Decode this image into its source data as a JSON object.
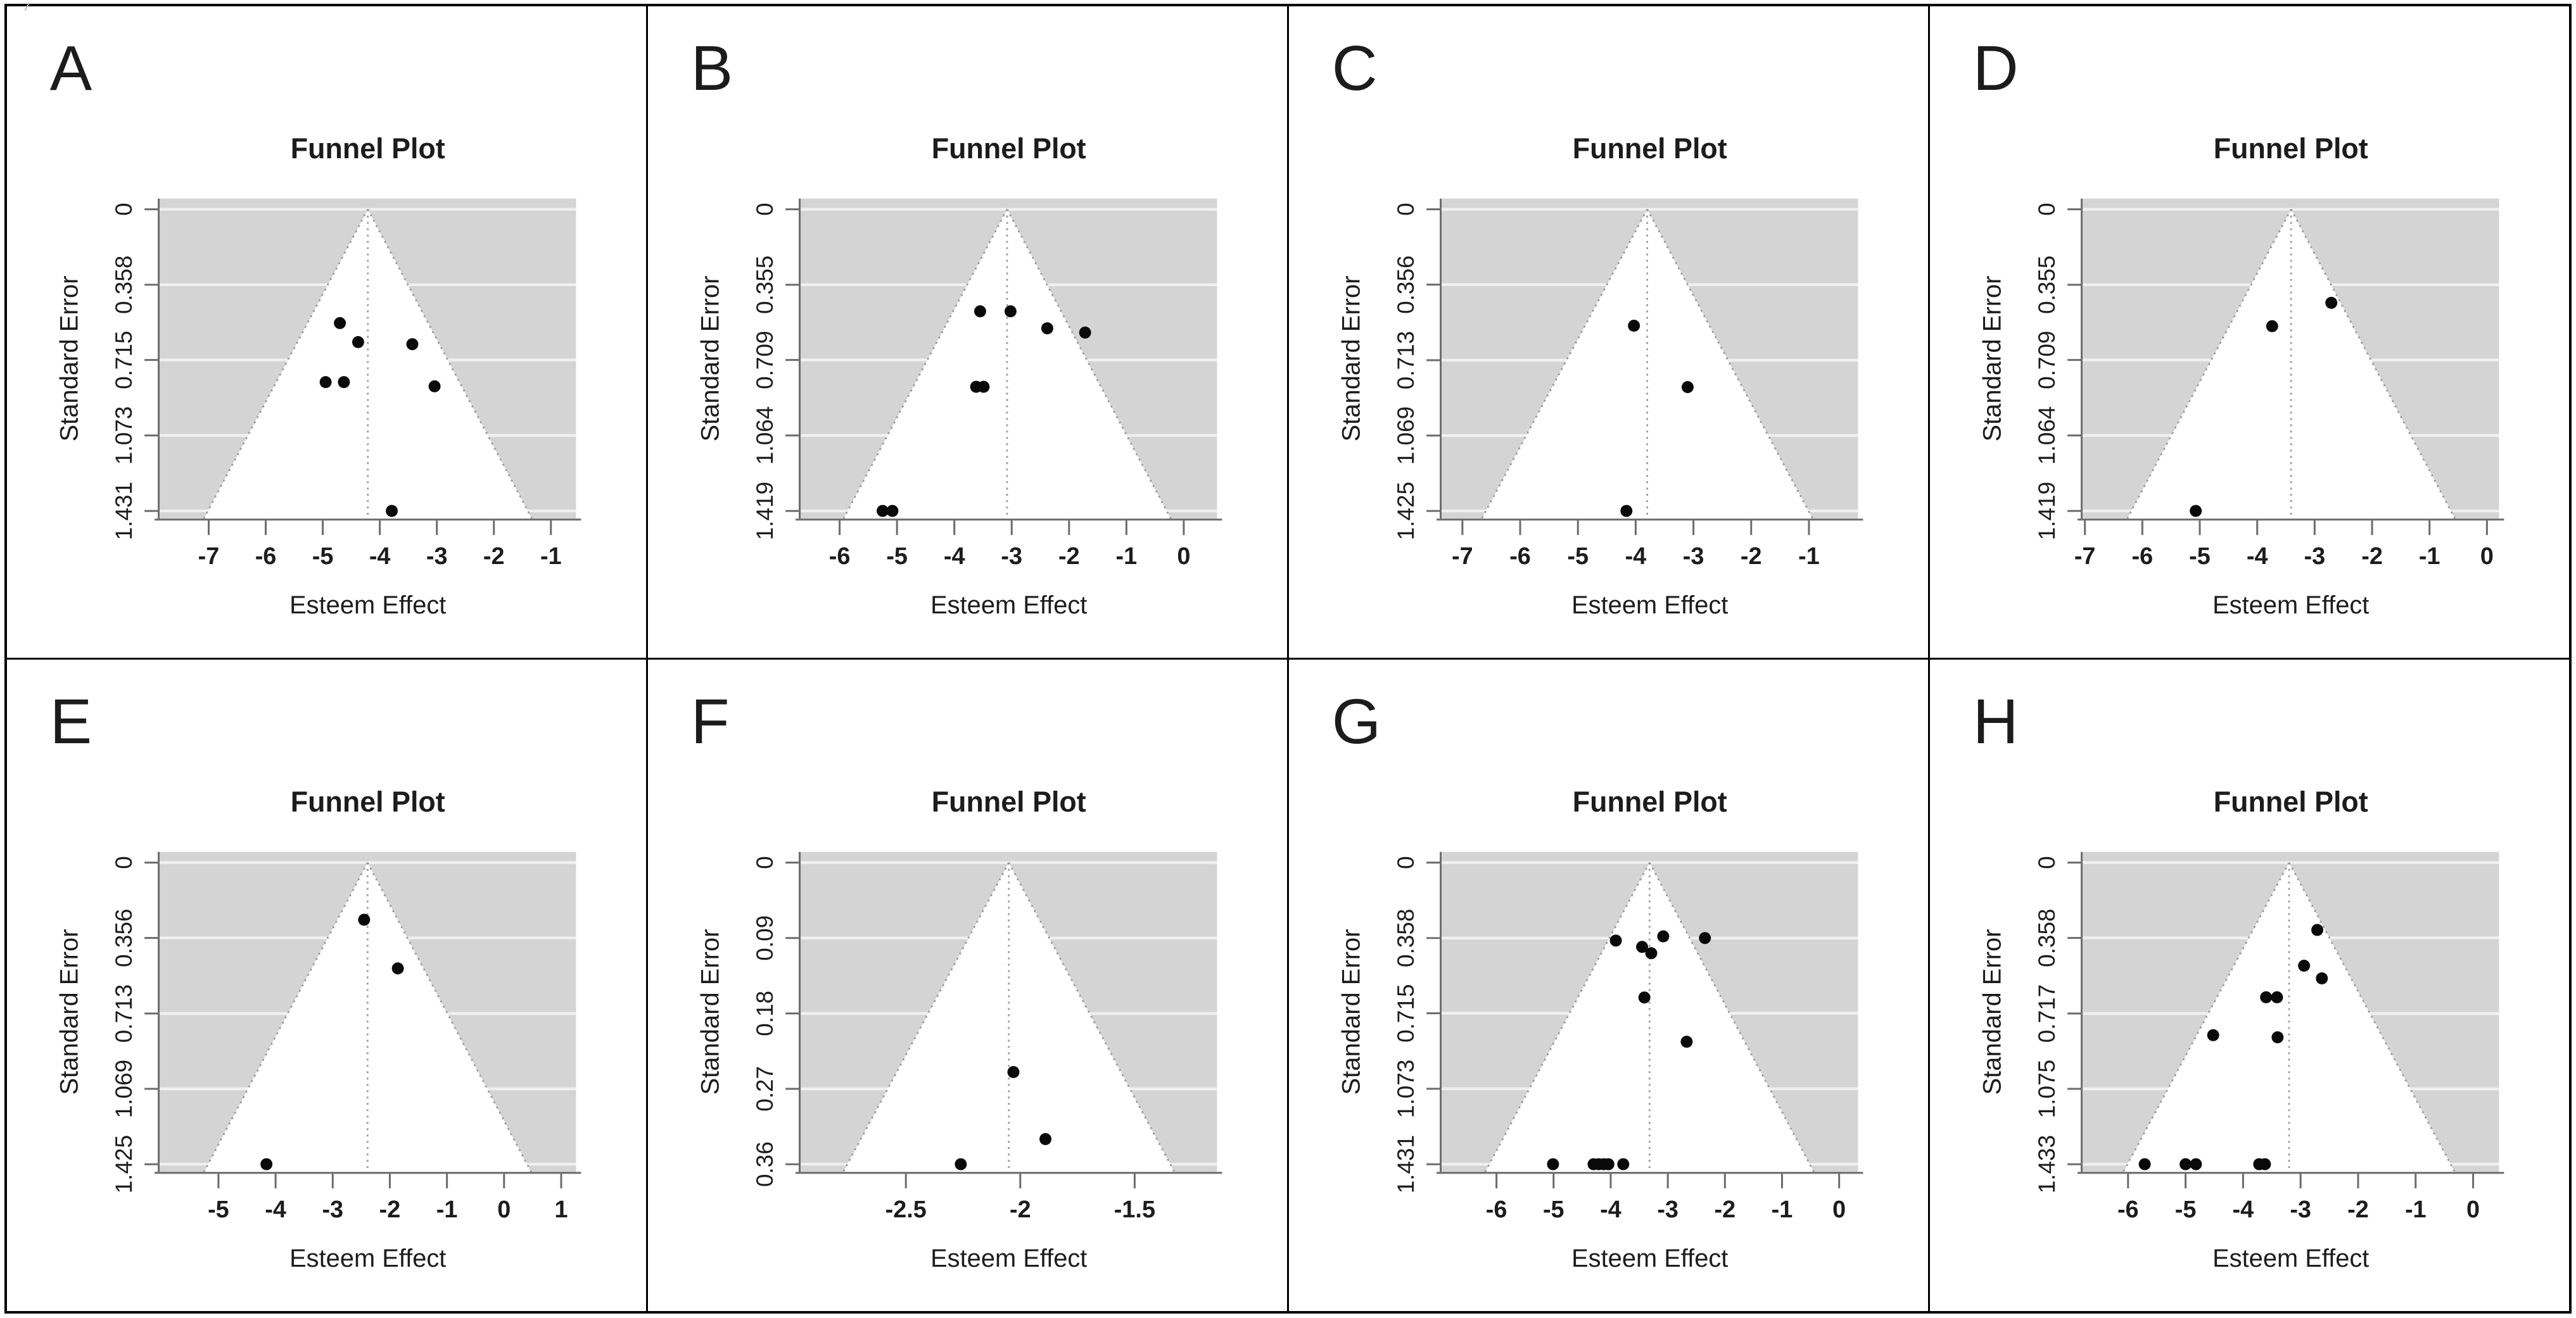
{
  "figure": {
    "description": "Eight funnel plots arranged in a 2x4 grid, panels A through H",
    "common": {
      "title": "Funnel Plot",
      "xlabel": "Esteem Effect",
      "ylabel": "Standard Error"
    },
    "colors": {
      "plot_background": "#d4d4d4",
      "gridline": "#f0f0f0",
      "funnel_fill": "#ffffff",
      "funnel_edge": "#9b9b9b",
      "center_line": "#9b9b9b",
      "axis": "#6b6b6b",
      "text": "#1c1c1c",
      "point": "#0a0a0a",
      "panel_border": "#000000"
    }
  },
  "chart_data": [
    {
      "type": "scatter",
      "panel_label": "A",
      "title": "Funnel Plot",
      "xlabel": "Esteem Effect",
      "ylabel": "Standard Error",
      "xtick_labels": [
        "-7",
        "-6",
        "-5",
        "-4",
        "-3",
        "-2",
        "-1"
      ],
      "xtick_values": [
        -7,
        -6,
        -5,
        -4,
        -3,
        -2,
        -1
      ],
      "ytick_labels": [
        "0",
        "0.358",
        "0.715",
        "1.073",
        "1.431"
      ],
      "ytick_values": [
        0,
        0.358,
        0.715,
        1.073,
        1.431
      ],
      "xlim": [
        -7.86,
        -0.56
      ],
      "se_max": 1.431,
      "center_line_x": -4.21,
      "points": [
        [
          -4.7,
          0.54
        ],
        [
          -4.38,
          0.63
        ],
        [
          -3.43,
          0.64
        ],
        [
          -4.95,
          0.82
        ],
        [
          -4.63,
          0.82
        ],
        [
          -3.04,
          0.84
        ],
        [
          -3.79,
          1.431
        ]
      ]
    },
    {
      "type": "scatter",
      "panel_label": "B",
      "title": "Funnel Plot",
      "xlabel": "Esteem Effect",
      "ylabel": "Standard Error",
      "xtick_labels": [
        "-6",
        "-5",
        "-4",
        "-3",
        "-2",
        "-1",
        "0"
      ],
      "xtick_values": [
        -6,
        -5,
        -4,
        -3,
        -2,
        -1,
        0
      ],
      "ytick_labels": [
        "0",
        "0.355",
        "0.709",
        "1.064",
        "1.419"
      ],
      "ytick_values": [
        0,
        0.355,
        0.709,
        1.064,
        1.419
      ],
      "xlim": [
        -6.68,
        0.58
      ],
      "se_max": 1.419,
      "center_line_x": -3.08,
      "points": [
        [
          -3.55,
          0.48
        ],
        [
          -3.02,
          0.48
        ],
        [
          -2.38,
          0.56
        ],
        [
          -1.72,
          0.58
        ],
        [
          -3.62,
          0.835
        ],
        [
          -3.49,
          0.835
        ],
        [
          -5.25,
          1.419
        ],
        [
          -5.08,
          1.419
        ]
      ]
    },
    {
      "type": "scatter",
      "panel_label": "C",
      "title": "Funnel Plot",
      "xlabel": "Esteem Effect",
      "ylabel": "Standard Error",
      "xtick_labels": [
        "-7",
        "-6",
        "-5",
        "-4",
        "-3",
        "-2",
        "-1"
      ],
      "xtick_values": [
        -7,
        -6,
        -5,
        -4,
        -3,
        -2,
        -1
      ],
      "ytick_labels": [
        "0",
        "0.356",
        "0.713",
        "1.069",
        "1.425"
      ],
      "ytick_values": [
        0,
        0.356,
        0.713,
        1.069,
        1.425
      ],
      "xlim": [
        -7.36,
        -0.15
      ],
      "se_max": 1.425,
      "center_line_x": -3.8,
      "points": [
        [
          -4.03,
          0.55
        ],
        [
          -3.1,
          0.84
        ],
        [
          -4.16,
          1.425
        ]
      ]
    },
    {
      "type": "scatter",
      "panel_label": "D",
      "title": "Funnel Plot",
      "xlabel": "Esteem Effect",
      "ylabel": "Standard Error",
      "xtick_labels": [
        "-7",
        "-6",
        "-5",
        "-4",
        "-3",
        "-2",
        "-1",
        "0"
      ],
      "xtick_values": [
        -7,
        -6,
        -5,
        -4,
        -3,
        -2,
        -1,
        0
      ],
      "ytick_labels": [
        "0",
        "0.355",
        "0.709",
        "1.064",
        "1.419"
      ],
      "ytick_values": [
        0,
        0.355,
        0.709,
        1.064,
        1.419
      ],
      "xlim": [
        -7.04,
        0.21
      ],
      "se_max": 1.419,
      "center_line_x": -3.41,
      "points": [
        [
          -2.71,
          0.44
        ],
        [
          -3.74,
          0.55
        ],
        [
          -5.07,
          1.419
        ]
      ]
    },
    {
      "type": "scatter",
      "panel_label": "E",
      "title": "Funnel Plot",
      "xlabel": "Esteem Effect",
      "ylabel": "Standard Error",
      "xtick_labels": [
        "-5",
        "-4",
        "-3",
        "-2",
        "-1",
        "0",
        "1"
      ],
      "xtick_values": [
        -5,
        -4,
        -3,
        -2,
        -1,
        0,
        1
      ],
      "ytick_labels": [
        "0",
        "0.356",
        "0.713",
        "1.069",
        "1.425"
      ],
      "ytick_values": [
        0,
        0.356,
        0.713,
        1.069,
        1.425
      ],
      "xlim": [
        -6.03,
        1.26
      ],
      "se_max": 1.425,
      "center_line_x": -2.39,
      "points": [
        [
          -2.45,
          0.27
        ],
        [
          -1.86,
          0.5
        ],
        [
          -4.16,
          1.425
        ]
      ]
    },
    {
      "type": "scatter",
      "panel_label": "F",
      "title": "Funnel Plot",
      "xlabel": "Esteem Effect",
      "ylabel": "Standard Error",
      "xtick_labels": [
        "-2.5",
        "-2",
        "-1.5"
      ],
      "xtick_values": [
        -2.5,
        -2,
        -1.5
      ],
      "ytick_labels": [
        "0",
        "0.09",
        "0.18",
        "0.27",
        "0.36"
      ],
      "ytick_values": [
        0,
        0.09,
        0.18,
        0.27,
        0.36
      ],
      "xlim": [
        -2.96,
        -1.14
      ],
      "se_max": 0.36,
      "center_line_x": -2.05,
      "points": [
        [
          -2.03,
          0.25
        ],
        [
          -1.89,
          0.33
        ],
        [
          -2.26,
          0.36
        ]
      ]
    },
    {
      "type": "scatter",
      "panel_label": "G",
      "title": "Funnel Plot",
      "xlabel": "Esteem Effect",
      "ylabel": "Standard Error",
      "xtick_labels": [
        "-6",
        "-5",
        "-4",
        "-3",
        "-2",
        "-1",
        "0"
      ],
      "xtick_values": [
        -6,
        -5,
        -4,
        -3,
        -2,
        -1,
        0
      ],
      "ytick_labels": [
        "0",
        "0.358",
        "0.715",
        "1.073",
        "1.431"
      ],
      "ytick_values": [
        0,
        0.358,
        0.715,
        1.073,
        1.431
      ],
      "xlim": [
        -6.96,
        0.33
      ],
      "se_max": 1.431,
      "center_line_x": -3.32,
      "points": [
        [
          -3.91,
          0.37
        ],
        [
          -3.45,
          0.4
        ],
        [
          -3.29,
          0.43
        ],
        [
          -3.08,
          0.35
        ],
        [
          -2.35,
          0.358
        ],
        [
          -3.41,
          0.64
        ],
        [
          -2.67,
          0.85
        ],
        [
          -5.01,
          1.431
        ],
        [
          -4.3,
          1.431
        ],
        [
          -4.21,
          1.431
        ],
        [
          -4.12,
          1.431
        ],
        [
          -4.04,
          1.431
        ],
        [
          -3.78,
          1.431
        ]
      ]
    },
    {
      "type": "scatter",
      "panel_label": "H",
      "title": "Funnel Plot",
      "xlabel": "Esteem Effect",
      "ylabel": "Standard Error",
      "xtick_labels": [
        "-6",
        "-5",
        "-4",
        "-3",
        "-2",
        "-1",
        "0"
      ],
      "xtick_values": [
        -6,
        -5,
        -4,
        -3,
        -2,
        -1,
        0
      ],
      "ytick_labels": [
        "0",
        "0.358",
        "0.717",
        "1.075",
        "1.433"
      ],
      "ytick_values": [
        0,
        0.358,
        0.717,
        1.075,
        1.433
      ],
      "xlim": [
        -6.79,
        0.45
      ],
      "se_max": 1.433,
      "center_line_x": -3.2,
      "points": [
        [
          -2.71,
          0.32
        ],
        [
          -2.94,
          0.49
        ],
        [
          -2.63,
          0.55
        ],
        [
          -3.6,
          0.64
        ],
        [
          -3.41,
          0.64
        ],
        [
          -4.52,
          0.82
        ],
        [
          -3.4,
          0.83
        ],
        [
          -5.71,
          1.433
        ],
        [
          -5.0,
          1.433
        ],
        [
          -4.82,
          1.433
        ],
        [
          -3.72,
          1.433
        ],
        [
          -3.62,
          1.433
        ]
      ]
    }
  ]
}
